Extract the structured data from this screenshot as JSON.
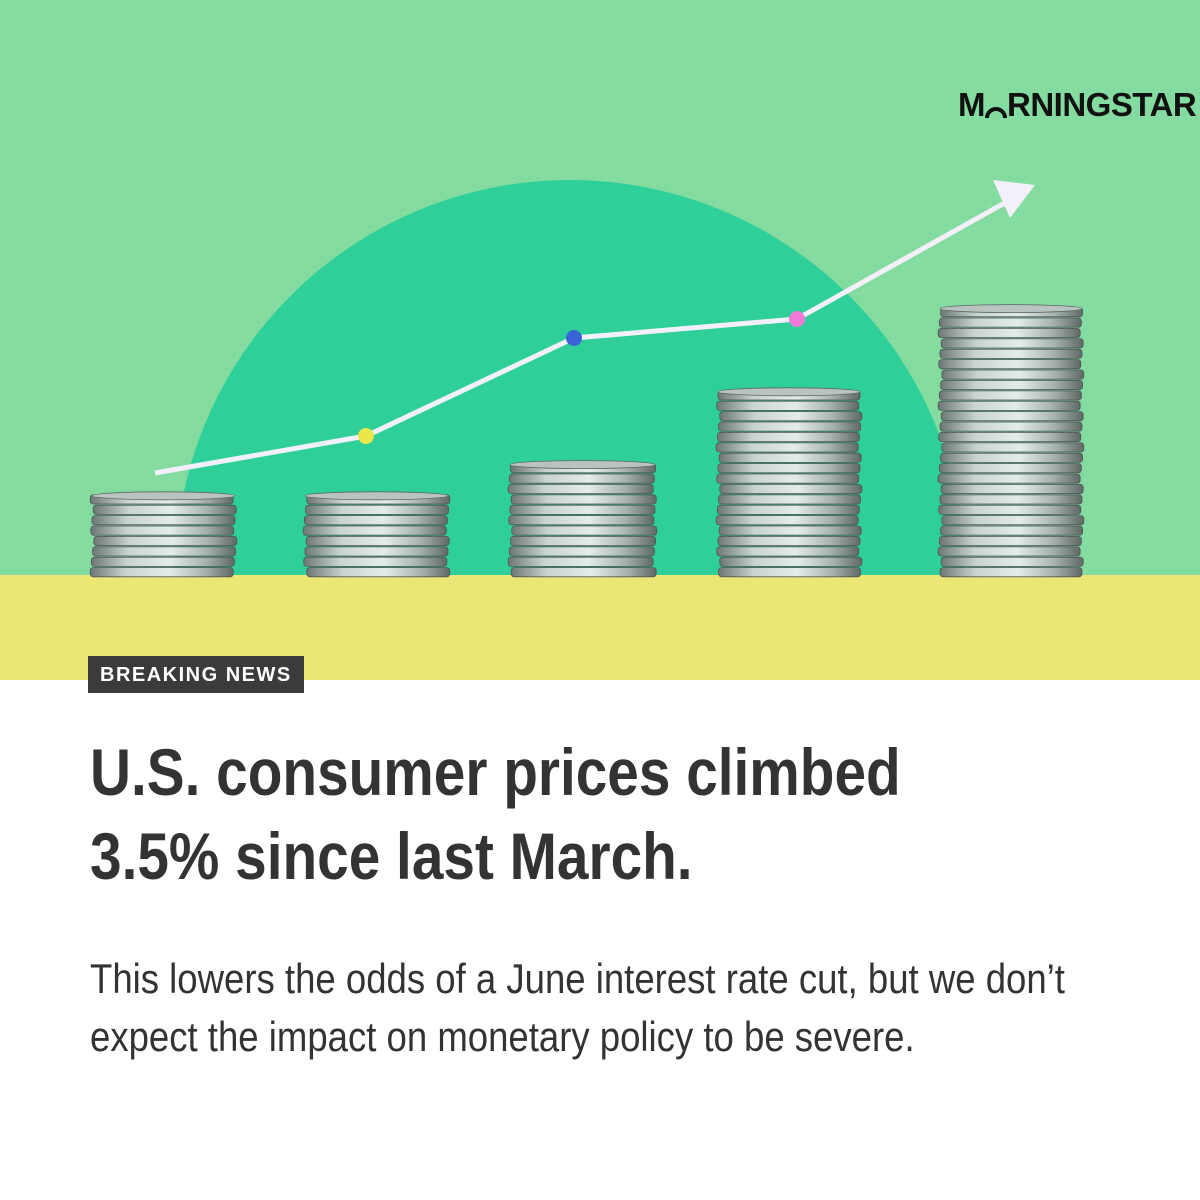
{
  "brand": {
    "logo_prefix": "M",
    "logo_suffix": "RNINGSTAR",
    "logo_icon": "morningstar-o-mark-icon"
  },
  "badge": {
    "label": "BREAKING NEWS"
  },
  "headline": {
    "text": "U.S. consumer prices climbed 3.5% since last March."
  },
  "subtext": {
    "text": "This lowers the odds of a June interest rate cut, but we don’t expect the impact on monetary policy to be severe."
  },
  "illustration": {
    "description_icon": "coin-stacks-rising-trend-icon",
    "stack_levels": [
      1,
      1,
      2,
      3,
      4
    ],
    "colors": {
      "background": "#84dca0",
      "sun_circle": "#2ecf98",
      "ground": "#ece775",
      "line": "#f4f0fb",
      "dot_yellow": "#e8e84a",
      "dot_blue": "#3a63d8",
      "dot_pink": "#f07ad8",
      "coin": "#b9c4c1"
    }
  }
}
